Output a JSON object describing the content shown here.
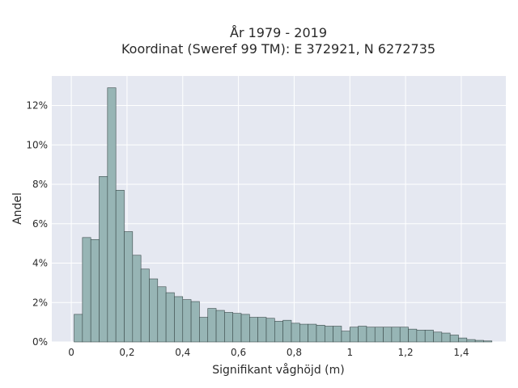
{
  "chart_data": {
    "type": "bar",
    "title_lines": [
      "År 1979 - 2019",
      "Koordinat (Sweref 99 TM): E 372921, N 6272735"
    ],
    "xlabel": "Signifikant våghöjd (m)",
    "ylabel": "Andel",
    "xlim": [
      -0.07,
      1.56
    ],
    "ylim": [
      0,
      13.5
    ],
    "x_ticks": [
      {
        "value": 0,
        "label": "0"
      },
      {
        "value": 0.2,
        "label": "0,2"
      },
      {
        "value": 0.4,
        "label": "0,4"
      },
      {
        "value": 0.6,
        "label": "0,6"
      },
      {
        "value": 0.8,
        "label": "0,8"
      },
      {
        "value": 1.0,
        "label": "1"
      },
      {
        "value": 1.2,
        "label": "1,2"
      },
      {
        "value": 1.4,
        "label": "1,4"
      }
    ],
    "y_ticks": [
      {
        "value": 0,
        "label": "0%"
      },
      {
        "value": 2,
        "label": "2%"
      },
      {
        "value": 4,
        "label": "4%"
      },
      {
        "value": 6,
        "label": "6%"
      },
      {
        "value": 8,
        "label": "8%"
      },
      {
        "value": 10,
        "label": "10%"
      },
      {
        "value": 12,
        "label": "12%"
      }
    ],
    "bin_start": 0.01,
    "bin_width": 0.03,
    "values": [
      1.4,
      5.3,
      5.2,
      8.4,
      12.9,
      7.7,
      5.6,
      4.4,
      3.7,
      3.2,
      2.8,
      2.5,
      2.3,
      2.15,
      2.05,
      1.25,
      1.7,
      1.6,
      1.5,
      1.45,
      1.4,
      1.25,
      1.25,
      1.2,
      1.05,
      1.1,
      0.95,
      0.9,
      0.9,
      0.85,
      0.8,
      0.8,
      0.55,
      0.75,
      0.8,
      0.75,
      0.75,
      0.75,
      0.75,
      0.75,
      0.65,
      0.6,
      0.6,
      0.5,
      0.45,
      0.35,
      0.2,
      0.12,
      0.08,
      0.05
    ],
    "grid": true,
    "colors": {
      "background": "#e5e8f1",
      "bar_fill": "#97b5b5",
      "bar_stroke": "#3b4b4b",
      "grid": "#ffffff"
    }
  }
}
